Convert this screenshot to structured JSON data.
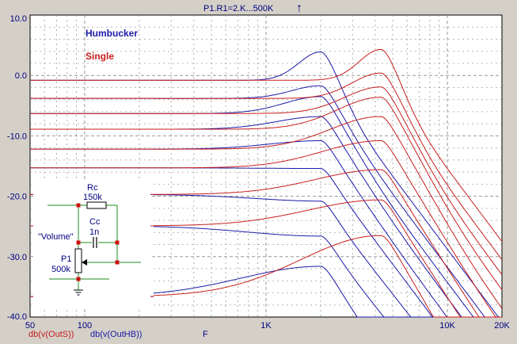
{
  "header": {
    "sweep_label": "P1.R1=2.K...500K",
    "arrow_glyph": "↑"
  },
  "footer": {
    "trace_s": "db(v(OutS))",
    "trace_hb": "db(v(OutHB))",
    "x_variable": "F"
  },
  "colors": {
    "humbucker": "#1a1aa8",
    "single": "#c81e1e",
    "grid": "#8c8c8c",
    "axis_text": "#000080",
    "schematic_green": "#1e8c1e",
    "node_red": "#d01010"
  },
  "schematic": {
    "rc_label": "Rc",
    "rc_value": "150k",
    "cc_label": "Cc",
    "cc_value": "1n",
    "p1_label": "P1",
    "p1_value": "500k",
    "volume_label": "\"Volume\""
  },
  "chart_data": {
    "type": "line",
    "x_scale": "log",
    "xlim": [
      50,
      20000
    ],
    "ylim": [
      -40,
      10
    ],
    "x_ticks": [
      {
        "value": 50,
        "label": "50"
      },
      {
        "value": 100,
        "label": "100"
      },
      {
        "value": 1000,
        "label": "1K"
      },
      {
        "value": 10000,
        "label": "10K"
      },
      {
        "value": 20000,
        "label": "20K"
      }
    ],
    "y_ticks": [
      {
        "value": 10,
        "label": "10.0"
      },
      {
        "value": 0,
        "label": "0.0"
      },
      {
        "value": -10,
        "label": "-10.0"
      },
      {
        "value": -20,
        "label": "-20.0"
      },
      {
        "value": -30,
        "label": "-30.0"
      },
      {
        "value": -40,
        "label": "-40.0"
      }
    ],
    "grid": true,
    "legend": {
      "placement": "top-left",
      "entries": [
        "Humbucker",
        "Single"
      ]
    },
    "series": [
      {
        "name": "Humbucker",
        "peak_freq_hz": 2000,
        "rolloff_db_per_decade": -40,
        "curves": [
          {
            "level_db": -0.8,
            "peak_db": 3.9
          },
          {
            "level_db": -3.8,
            "peak_db": -1.7
          },
          {
            "level_db": -6.3,
            "peak_db": -3.5
          },
          {
            "level_db": -8.9,
            "peak_db": -6.8
          },
          {
            "level_db": -12.2,
            "peak_db": -10.8
          },
          {
            "level_db": -15.3,
            "peak_db": -15.4
          },
          {
            "level_db": -19.7,
            "peak_db": -20.8
          },
          {
            "level_db": -24.9,
            "peak_db": -26.6
          },
          {
            "level_db": -36.6,
            "peak_db": -31.6
          }
        ]
      },
      {
        "name": "Single",
        "peak_freq_hz": 4300,
        "rolloff_db_per_decade": -40,
        "curves": [
          {
            "level_db": -0.8,
            "peak_db": 4.3
          },
          {
            "level_db": -3.8,
            "peak_db": 0.4
          },
          {
            "level_db": -6.3,
            "peak_db": -1.9
          },
          {
            "level_db": -8.9,
            "peak_db": -3.6
          },
          {
            "level_db": -12.2,
            "peak_db": -6.8
          },
          {
            "level_db": -15.3,
            "peak_db": -10.8
          },
          {
            "level_db": -19.7,
            "peak_db": -15.6
          },
          {
            "level_db": -24.9,
            "peak_db": -20.6
          },
          {
            "level_db": -36.6,
            "peak_db": -26.5
          }
        ]
      }
    ]
  }
}
